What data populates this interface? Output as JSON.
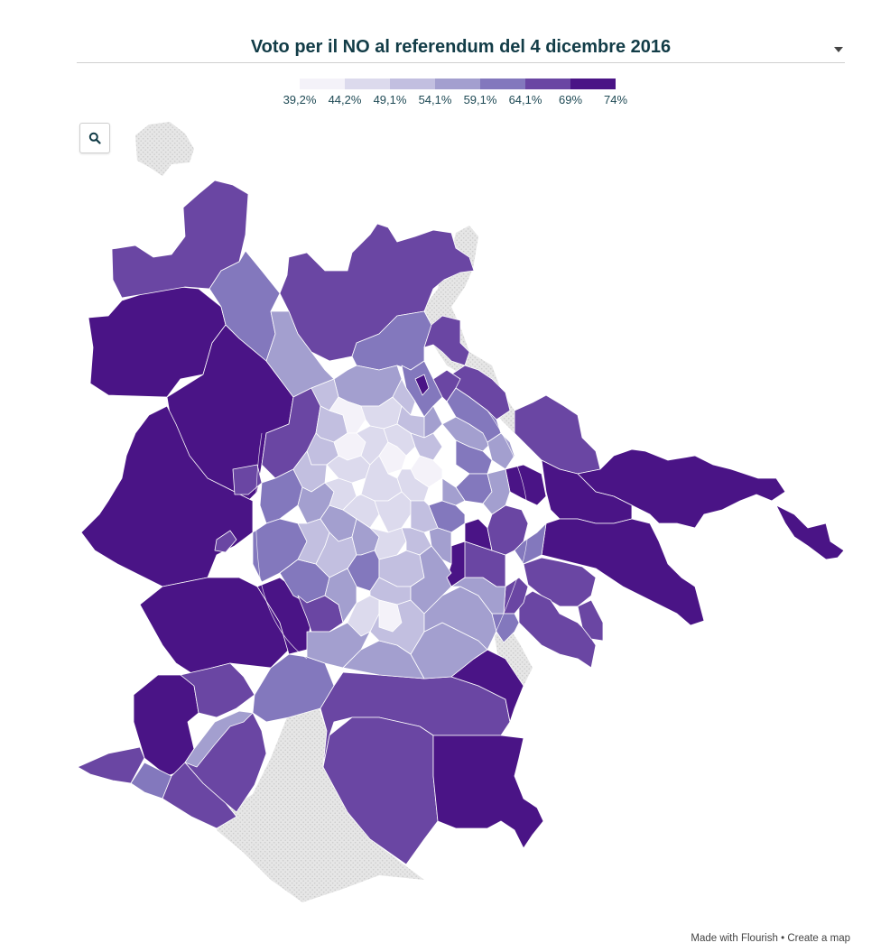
{
  "title": "Voto per il NO al referendum del 4 dicembre 2016",
  "legend": {
    "labels": [
      "39,2%",
      "44,2%",
      "49,1%",
      "54,1%",
      "59,1%",
      "64,1%",
      "69%",
      "74%"
    ],
    "colors": [
      "#f4f2f9",
      "#dcdaed",
      "#c2bfe0",
      "#a39fcf",
      "#8378bd",
      "#6a46a3",
      "#4a1486"
    ]
  },
  "colors": {
    "no_data": "#e3e3e3",
    "no_data_pattern": "#cfcfcf",
    "title": "#123c47",
    "border": "#ffffff"
  },
  "icons": {
    "search": "search-icon",
    "dropdown": "chevron-down-icon"
  },
  "credits": {
    "made_with": "Made with Flourish",
    "separator": "•",
    "create": "Create a map"
  }
}
